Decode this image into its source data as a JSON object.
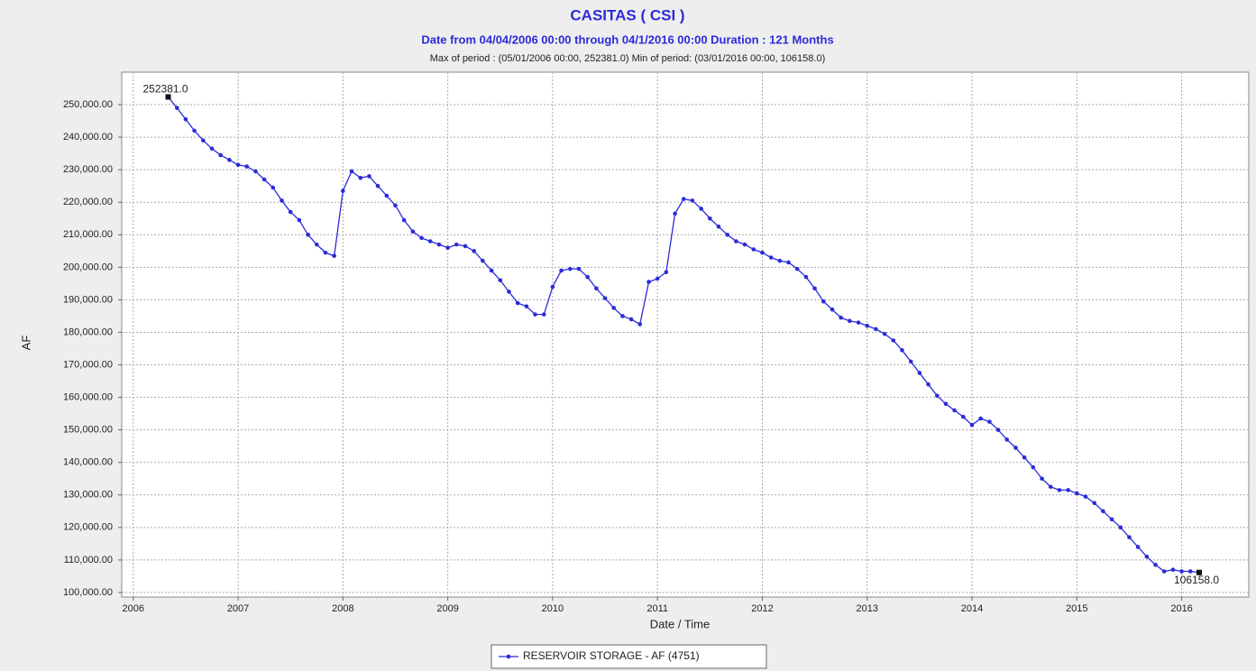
{
  "chart_data": {
    "type": "line",
    "title": "CASITAS ( CSI )",
    "subtitle": "Date from 04/04/2006 00:00 through 04/1/2016 00:00 Duration : 121 Months",
    "subtitle2": "Max of period : (05/01/2006 00:00, 252381.0)  Min of period: (03/01/2016 00:00,  106158.0)",
    "xlabel": "Date / Time",
    "ylabel": "AF",
    "x": [
      2006.333,
      2006.417,
      2006.5,
      2006.583,
      2006.667,
      2006.75,
      2006.833,
      2006.917,
      2007,
      2007.083,
      2007.167,
      2007.25,
      2007.333,
      2007.417,
      2007.5,
      2007.583,
      2007.667,
      2007.75,
      2007.833,
      2007.917,
      2008,
      2008.083,
      2008.167,
      2008.25,
      2008.333,
      2008.417,
      2008.5,
      2008.583,
      2008.667,
      2008.75,
      2008.833,
      2008.917,
      2009,
      2009.083,
      2009.167,
      2009.25,
      2009.333,
      2009.417,
      2009.5,
      2009.583,
      2009.667,
      2009.75,
      2009.833,
      2009.917,
      2010,
      2010.083,
      2010.167,
      2010.25,
      2010.333,
      2010.417,
      2010.5,
      2010.583,
      2010.667,
      2010.75,
      2010.833,
      2010.917,
      2011,
      2011.083,
      2011.167,
      2011.25,
      2011.333,
      2011.417,
      2011.5,
      2011.583,
      2011.667,
      2011.75,
      2011.833,
      2011.917,
      2012,
      2012.083,
      2012.167,
      2012.25,
      2012.333,
      2012.417,
      2012.5,
      2012.583,
      2012.667,
      2012.75,
      2012.833,
      2012.917,
      2013,
      2013.083,
      2013.167,
      2013.25,
      2013.333,
      2013.417,
      2013.5,
      2013.583,
      2013.667,
      2013.75,
      2013.833,
      2013.917,
      2014,
      2014.083,
      2014.167,
      2014.25,
      2014.333,
      2014.417,
      2014.5,
      2014.583,
      2014.667,
      2014.75,
      2014.833,
      2014.917,
      2015,
      2015.083,
      2015.167,
      2015.25,
      2015.333,
      2015.417,
      2015.5,
      2015.583,
      2015.667,
      2015.75,
      2015.833,
      2015.917,
      2016,
      2016.083,
      2016.167
    ],
    "series": [
      {
        "name": "RESERVOIR STORAGE - AF (4751)",
        "color": "#2b2bd9",
        "values": [
          252381,
          249000,
          245500,
          242000,
          239000,
          236500,
          234500,
          233000,
          231500,
          231000,
          229500,
          227000,
          224500,
          220500,
          217000,
          214500,
          210000,
          207000,
          204500,
          203500,
          223500,
          229500,
          227500,
          228000,
          225000,
          222000,
          219000,
          214500,
          211000,
          209000,
          208000,
          207000,
          206000,
          207000,
          206500,
          205000,
          202000,
          199000,
          196000,
          192500,
          189000,
          188000,
          185500,
          185500,
          194000,
          199000,
          199500,
          199500,
          197000,
          193500,
          190500,
          187500,
          185000,
          184000,
          182500,
          195500,
          196500,
          198500,
          216500,
          221000,
          220500,
          218000,
          215000,
          212500,
          210000,
          208000,
          207000,
          205500,
          204500,
          203000,
          202000,
          201500,
          199500,
          197000,
          193500,
          189500,
          187000,
          184500,
          183500,
          183000,
          182000,
          181000,
          179500,
          177500,
          174500,
          171000,
          167500,
          164000,
          160500,
          158000,
          156000,
          154000,
          151500,
          153500,
          152500,
          150000,
          147000,
          144500,
          141500,
          138500,
          135000,
          132500,
          131500,
          131500,
          130500,
          129500,
          127500,
          125000,
          122500,
          120000,
          117000,
          114000,
          111000,
          108500,
          106500,
          107000,
          106500,
          106500,
          106158
        ]
      }
    ],
    "annotations": [
      {
        "text": "252381.0",
        "x": 2006.333,
        "y": 252381
      },
      {
        "text": "106158.0",
        "x": 2016.167,
        "y": 106158
      }
    ],
    "xlim": [
      2005.89,
      2016.64
    ],
    "xticks": [
      2006,
      2007,
      2008,
      2009,
      2010,
      2011,
      2012,
      2013,
      2014,
      2015,
      2016
    ],
    "ylim": [
      98600,
      260000
    ],
    "yticks": [
      {
        "value": 100000,
        "label": "100,000.00"
      },
      {
        "value": 110000,
        "label": "110,000.00"
      },
      {
        "value": 120000,
        "label": "120,000.00"
      },
      {
        "value": 130000,
        "label": "130,000.00"
      },
      {
        "value": 140000,
        "label": "140,000.00"
      },
      {
        "value": 150000,
        "label": "150,000.00"
      },
      {
        "value": 160000,
        "label": "160,000.00"
      },
      {
        "value": 170000,
        "label": "170,000.00"
      },
      {
        "value": 180000,
        "label": "180,000.00"
      },
      {
        "value": 190000,
        "label": "190,000.00"
      },
      {
        "value": 200000,
        "label": "200,000.00"
      },
      {
        "value": 210000,
        "label": "210,000.00"
      },
      {
        "value": 220000,
        "label": "220,000.00"
      },
      {
        "value": 230000,
        "label": "230,000.00"
      },
      {
        "value": 240000,
        "label": "240,000.00"
      },
      {
        "value": 250000,
        "label": "250,000.00"
      }
    ],
    "grid": true,
    "legend": "bottom"
  }
}
